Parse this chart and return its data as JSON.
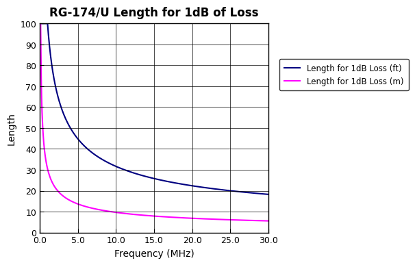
{
  "title": "RG-174/U Length for 1dB of Loss",
  "xlabel": "Frequency (MHz)",
  "ylabel": "Length",
  "xlim": [
    0,
    30
  ],
  "ylim": [
    0,
    100
  ],
  "xticks": [
    0.0,
    5.0,
    10.0,
    15.0,
    20.0,
    25.0,
    30.0
  ],
  "yticks": [
    0,
    10,
    20,
    30,
    40,
    50,
    60,
    70,
    80,
    90,
    100
  ],
  "line_ft_color": "#000080",
  "line_m_color": "#FF00FF",
  "legend_ft": "Length for 1dB Loss (ft)",
  "legend_m": "Length for 1dB Loss (m)",
  "background_color": "#FFFFFF",
  "ft_scale": 100.0,
  "m_scale": 30.48
}
